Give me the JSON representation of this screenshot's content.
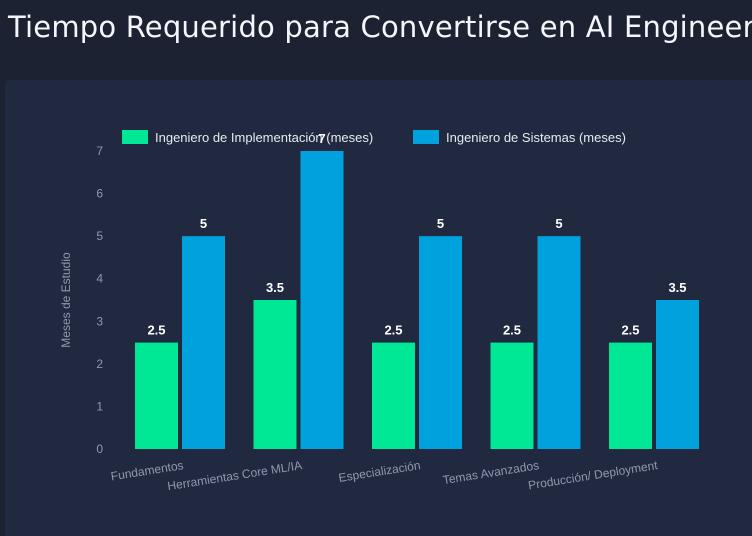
{
  "page": {
    "title": "Tiempo Requerido para Convertirse en AI Engineer"
  },
  "colors": {
    "background": "#1c2231",
    "panel": "#212940",
    "series_1": "#00e896",
    "series_2": "#00a2dd"
  },
  "chart_data": {
    "type": "bar",
    "title": "Tiempo Requerido para Convertirse en AI Engineer",
    "xlabel": "",
    "ylabel": "Meses de Estudio",
    "ylim": [
      0,
      7
    ],
    "yticks": [
      0,
      1,
      2,
      3,
      4,
      5,
      6,
      7
    ],
    "grid": false,
    "legend_position": "top",
    "categories": [
      "Fundamentos",
      "Herramientas Core ML/IA",
      "Especialización",
      "Temas Avanzados",
      "Producción/ Deployment"
    ],
    "series": [
      {
        "name": "Ingeniero de Implementación (meses)",
        "color": "#00e896",
        "values": [
          2.5,
          3.5,
          2.5,
          2.5,
          2.5
        ]
      },
      {
        "name": "Ingeniero de Sistemas (meses)",
        "color": "#00a2dd",
        "values": [
          5,
          7,
          5,
          5,
          3.5
        ]
      }
    ]
  }
}
